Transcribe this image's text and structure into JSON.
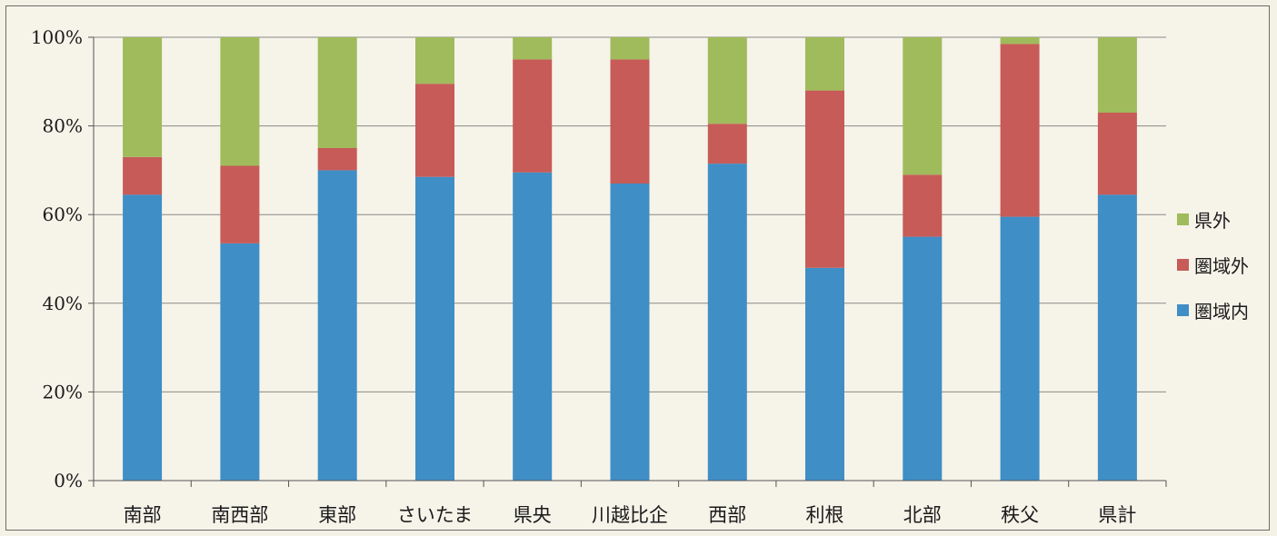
{
  "chart_data": {
    "type": "bar",
    "stacked": true,
    "percent_stacked": true,
    "categories": [
      "南部",
      "南西部",
      "東部",
      "さいたま",
      "県央",
      "川越比企",
      "西部",
      "利根",
      "北部",
      "秩父",
      "県計"
    ],
    "series": [
      {
        "name": "圏域内",
        "color": "#3f8ec6",
        "values": [
          64.5,
          53.5,
          70.0,
          68.5,
          69.5,
          67.0,
          71.5,
          48.0,
          55.0,
          59.5,
          64.5
        ]
      },
      {
        "name": "圏域外",
        "color": "#c75b57",
        "values": [
          8.5,
          17.5,
          5.0,
          21.0,
          25.5,
          28.0,
          9.0,
          40.0,
          14.0,
          39.0,
          18.5
        ]
      },
      {
        "name": "県外",
        "color": "#9fbb5b",
        "values": [
          27.0,
          29.0,
          25.0,
          10.5,
          5.0,
          5.0,
          19.5,
          12.0,
          31.0,
          1.5,
          17.0
        ]
      }
    ],
    "ylim": [
      0,
      100
    ],
    "yticks": [
      "0%",
      "20%",
      "40%",
      "60%",
      "80%",
      "100%"
    ],
    "grid": true,
    "legend_position": "right",
    "legend_order": [
      "県外",
      "圏域外",
      "圏域内"
    ]
  }
}
